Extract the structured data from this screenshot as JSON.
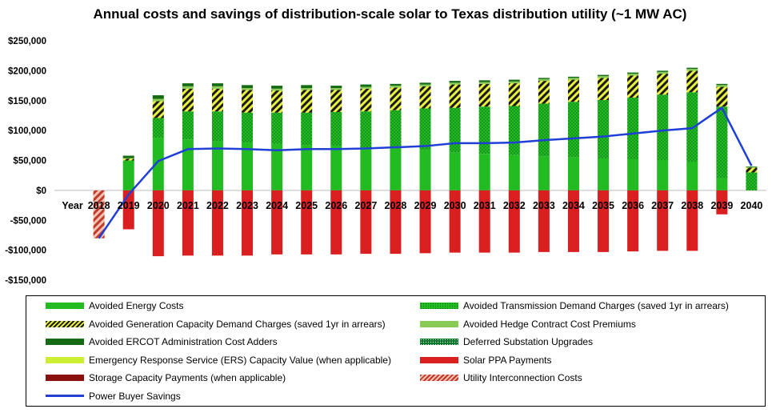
{
  "title": "Annual costs and savings of distribution-scale solar to Texas distribution utility (~1 MW AC)",
  "chart_data": {
    "type": "bar",
    "stacked": true,
    "title": "Annual costs and savings of distribution-scale solar to Texas distribution utility (~1 MW AC)",
    "categories": [
      "2018",
      "2019",
      "2020",
      "2021",
      "2022",
      "2023",
      "2024",
      "2025",
      "2026",
      "2027",
      "2028",
      "2029",
      "2030",
      "2031",
      "2032",
      "2033",
      "2034",
      "2035",
      "2036",
      "2037",
      "2038",
      "2039",
      "2040"
    ],
    "x_axis_first_label": "Year",
    "ylim": [
      -150000,
      250000
    ],
    "yticks": [
      -150000,
      -100000,
      -50000,
      0,
      50000,
      100000,
      150000,
      200000,
      250000
    ],
    "ytick_labels": [
      "-$150,000",
      "-$100,000",
      "-$50,000",
      "$0",
      "$50,000",
      "$100,000",
      "$150,000",
      "$200,000",
      "$250,000"
    ],
    "grid": false,
    "legend_position": "bottom",
    "series": [
      {
        "name": "Avoided Energy Costs",
        "color": "#22bb22",
        "pattern": "solid",
        "values": [
          0,
          50000,
          88000,
          85000,
          82000,
          80000,
          78000,
          76000,
          74000,
          72000,
          70000,
          68000,
          63000,
          61000,
          59000,
          57000,
          55000,
          54000,
          52000,
          50000,
          48000,
          20000,
          0
        ]
      },
      {
        "name": "Avoided Transmission Demand Charges (saved 1yr in arrears)",
        "color": "#22bb22",
        "pattern": "dots",
        "values": [
          0,
          0,
          33000,
          47000,
          50000,
          50000,
          52000,
          54000,
          57000,
          60000,
          64000,
          69000,
          75000,
          79000,
          82000,
          88000,
          93000,
          97000,
          103000,
          110000,
          116000,
          120000,
          30000
        ]
      },
      {
        "name": "Avoided Generation Capacity Demand Charges (saved 1yr in arrears)",
        "color": "#222222",
        "pattern": "stripes",
        "values": [
          0,
          3000,
          28000,
          38000,
          38000,
          38000,
          37000,
          38000,
          37000,
          38000,
          38000,
          37000,
          39000,
          38000,
          38000,
          38000,
          37000,
          37000,
          37000,
          35000,
          36000,
          33000,
          8000
        ]
      },
      {
        "name": "Avoided Hedge Contract Cost Premiums",
        "color": "#88cc55",
        "pattern": "solid",
        "values": [
          0,
          1000,
          4000,
          4000,
          4000,
          3000,
          3000,
          3000,
          3000,
          3000,
          3000,
          3000,
          3000,
          3000,
          3000,
          3000,
          3000,
          3000,
          3000,
          3000,
          3000,
          3000,
          1000
        ]
      },
      {
        "name": "Avoided ERCOT Administration Cost Adders",
        "color": "#146b14",
        "pattern": "solid",
        "values": [
          0,
          4000,
          6000,
          5000,
          5000,
          5000,
          5000,
          5000,
          4000,
          4000,
          3000,
          3000,
          3000,
          3000,
          3000,
          2000,
          2000,
          2000,
          2000,
          2000,
          2000,
          2000,
          1000
        ]
      },
      {
        "name": "Deferred Substation Upgrades",
        "color": "#0d7a2e",
        "pattern": "dots",
        "values": [
          0,
          0,
          0,
          0,
          0,
          0,
          0,
          0,
          0,
          0,
          0,
          0,
          0,
          0,
          0,
          0,
          0,
          0,
          0,
          0,
          0,
          0,
          0
        ]
      },
      {
        "name": "Emergency Response Service (ERS) Capacity Value (when applicable)",
        "color": "#ccee33",
        "pattern": "solid",
        "values": [
          0,
          0,
          0,
          0,
          0,
          0,
          0,
          0,
          0,
          0,
          0,
          0,
          0,
          0,
          0,
          0,
          0,
          0,
          0,
          0,
          0,
          0,
          0
        ]
      },
      {
        "name": "Solar PPA Payments",
        "color": "#d91f1f",
        "pattern": "solid",
        "values": [
          0,
          -65000,
          -110000,
          -109000,
          -109000,
          -109000,
          -107000,
          -107000,
          -107000,
          -106000,
          -106000,
          -105000,
          -104000,
          -104000,
          -104000,
          -103000,
          -103000,
          -103000,
          -102000,
          -101000,
          -101000,
          -40000,
          0
        ]
      },
      {
        "name": "Storage Capacity Payments (when applicable)",
        "color": "#8b1010",
        "pattern": "solid",
        "values": [
          0,
          0,
          0,
          0,
          0,
          0,
          0,
          0,
          0,
          0,
          0,
          0,
          0,
          0,
          0,
          0,
          0,
          0,
          0,
          0,
          0,
          0,
          0
        ]
      },
      {
        "name": "Utility Interconnection Costs",
        "color": "#c0392b",
        "pattern": "stripes-red",
        "values": [
          -80000,
          0,
          0,
          0,
          0,
          0,
          0,
          0,
          0,
          0,
          0,
          0,
          0,
          0,
          0,
          0,
          0,
          0,
          0,
          0,
          0,
          0,
          0
        ]
      }
    ],
    "line_series": [
      {
        "name": "Power Buyer Savings",
        "color": "#1f3fd6",
        "values": [
          -80000,
          -7000,
          49000,
          69000,
          70000,
          69000,
          67000,
          69000,
          69000,
          70000,
          72000,
          74000,
          79000,
          79000,
          80000,
          84000,
          87000,
          90000,
          95000,
          100000,
          104000,
          138000,
          41000
        ]
      }
    ]
  },
  "legend": {
    "items": [
      {
        "label": "Avoided Energy Costs",
        "color": "#22bb22",
        "pattern": "solid",
        "column": 0,
        "row": 0
      },
      {
        "label": "Avoided Transmission Demand Charges (saved 1yr in arrears)",
        "color": "#22bb22",
        "pattern": "dots",
        "column": 1,
        "row": 0
      },
      {
        "label": "Avoided Generation Capacity Demand Charges (saved 1yr in arrears)",
        "color": "#222222",
        "pattern": "stripes",
        "column": 0,
        "row": 1
      },
      {
        "label": "Avoided Hedge Contract Cost Premiums",
        "color": "#88cc55",
        "pattern": "solid",
        "column": 1,
        "row": 1
      },
      {
        "label": "Avoided ERCOT Administration Cost Adders",
        "color": "#146b14",
        "pattern": "solid",
        "column": 0,
        "row": 2
      },
      {
        "label": "Deferred Substation Upgrades",
        "color": "#0d7a2e",
        "pattern": "dots",
        "column": 1,
        "row": 2
      },
      {
        "label": "Emergency Response Service (ERS) Capacity Value (when applicable)",
        "color": "#ccee33",
        "pattern": "solid",
        "column": 0,
        "row": 3
      },
      {
        "label": "Solar PPA Payments",
        "color": "#d91f1f",
        "pattern": "solid",
        "column": 1,
        "row": 3
      },
      {
        "label": "Storage Capacity Payments (when applicable)",
        "color": "#8b1010",
        "pattern": "solid",
        "column": 0,
        "row": 4
      },
      {
        "label": "Utility Interconnection Costs",
        "color": "#c0392b",
        "pattern": "stripes-red",
        "column": 1,
        "row": 4
      },
      {
        "label": "Power Buyer Savings",
        "color": "#1f3fd6",
        "pattern": "line",
        "column": 0,
        "row": 5
      }
    ]
  }
}
